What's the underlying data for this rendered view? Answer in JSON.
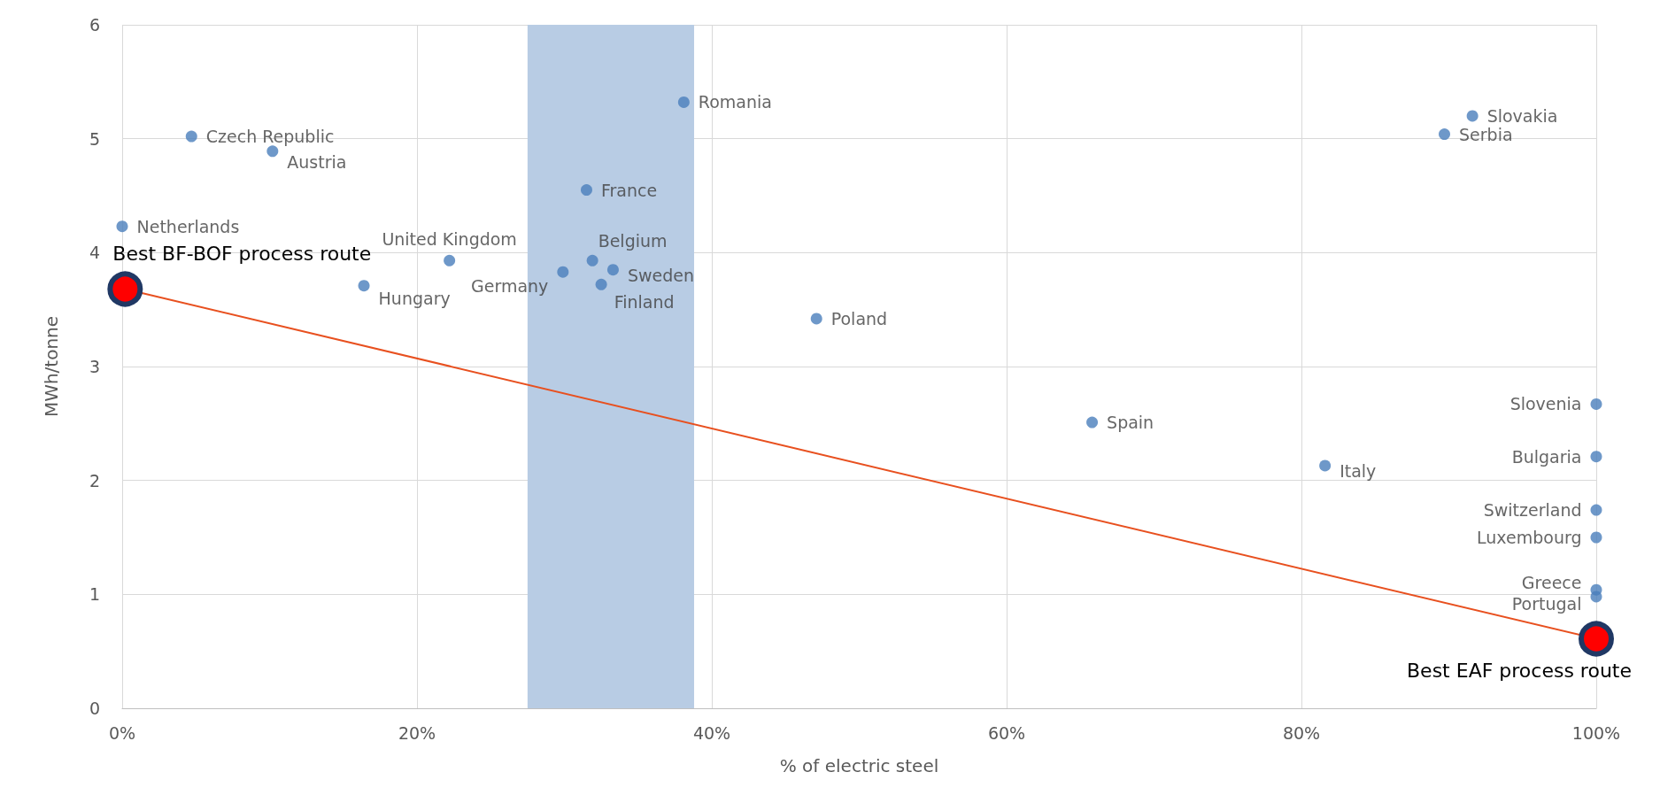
{
  "chart_data": {
    "type": "scatter",
    "xlabel": "% of electric steel",
    "ylabel": "MWh/tonne",
    "xlim": [
      0,
      100
    ],
    "xticks": [
      {
        "value": 0,
        "label": "0%"
      },
      {
        "value": 20,
        "label": "20%"
      },
      {
        "value": 40,
        "label": "40%"
      },
      {
        "value": 60,
        "label": "60%"
      },
      {
        "value": 80,
        "label": "80%"
      },
      {
        "value": 100,
        "label": "100%"
      }
    ],
    "ylim": [
      0,
      6
    ],
    "yticks": [
      0,
      1,
      2,
      3,
      4,
      5,
      6
    ],
    "grid": true,
    "marker": "circle",
    "bands": [
      {
        "axis": "x",
        "from": 27.5,
        "to": 38.8,
        "color": "#b8cce4"
      }
    ],
    "series": [
      {
        "color": "#4a7ebb",
        "x": [
          0,
          4.7,
          10.2,
          16.4,
          22.2,
          29.9,
          31.9,
          33.3,
          32.5,
          31.5,
          38.1,
          47.1,
          65.8,
          81.6,
          89.7,
          91.6,
          100,
          100,
          100,
          100,
          100,
          100
        ],
        "values": [
          4.23,
          5.02,
          4.89,
          3.71,
          3.93,
          3.83,
          3.93,
          3.85,
          3.72,
          4.55,
          5.32,
          3.42,
          2.51,
          2.13,
          5.04,
          5.2,
          2.67,
          2.21,
          1.74,
          1.5,
          1.04,
          0.98
        ]
      },
      {
        "type": "line",
        "color": "#e8501f",
        "x": [
          0.2,
          100
        ],
        "values": [
          3.68,
          0.61
        ],
        "value_labels": [
          "Best BF-BOF process route",
          "Best EAF process route"
        ]
      }
    ],
    "annotations": [
      {
        "text": "Netherlands",
        "x": 0,
        "y": 4.23
      },
      {
        "text": "Czech Republic",
        "x": 4.7,
        "y": 5.02
      },
      {
        "text": "Austria",
        "x": 10.2,
        "y": 4.89
      },
      {
        "text": "Hungary",
        "x": 16.4,
        "y": 3.71
      },
      {
        "text": "United Kingdom",
        "x": 22.2,
        "y": 3.93
      },
      {
        "text": "Germany",
        "x": 29.9,
        "y": 3.83
      },
      {
        "text": "Belgium",
        "x": 31.9,
        "y": 3.93
      },
      {
        "text": "Sweden",
        "x": 33.3,
        "y": 3.85
      },
      {
        "text": "Finland",
        "x": 32.5,
        "y": 3.72
      },
      {
        "text": "France",
        "x": 31.5,
        "y": 4.55
      },
      {
        "text": "Romania",
        "x": 38.1,
        "y": 5.32
      },
      {
        "text": "Poland",
        "x": 47.1,
        "y": 3.42
      },
      {
        "text": "Spain",
        "x": 65.8,
        "y": 2.51
      },
      {
        "text": "Italy",
        "x": 81.6,
        "y": 2.13
      },
      {
        "text": "Serbia",
        "x": 89.7,
        "y": 5.04
      },
      {
        "text": "Slovakia",
        "x": 91.6,
        "y": 5.2
      },
      {
        "text": "Slovenia",
        "x": 100,
        "y": 2.67
      },
      {
        "text": "Bulgaria",
        "x": 100,
        "y": 2.21
      },
      {
        "text": "Switzerland",
        "x": 100,
        "y": 1.74
      },
      {
        "text": "Luxembourg",
        "x": 100,
        "y": 1.5
      },
      {
        "text": "Greece",
        "x": 100,
        "y": 1.04
      },
      {
        "text": "Portugal",
        "x": 100,
        "y": 0.98
      }
    ]
  }
}
